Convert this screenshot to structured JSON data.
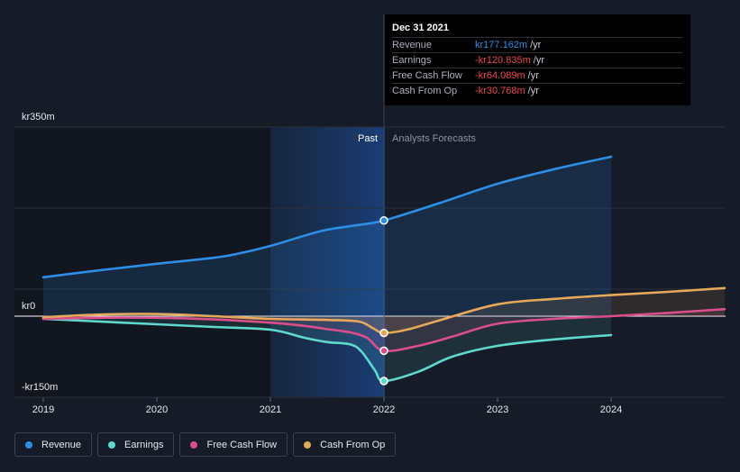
{
  "tooltip": {
    "date": "Dec 31 2021",
    "rows": [
      {
        "name": "Revenue",
        "value": "kr177.162m",
        "unit": "/yr",
        "color": "#2e8ee6"
      },
      {
        "name": "Earnings",
        "value": "-kr120.835m",
        "unit": "/yr",
        "color": "#e84a4a"
      },
      {
        "name": "Free Cash Flow",
        "value": "-kr64.089m",
        "unit": "/yr",
        "color": "#e84a4a"
      },
      {
        "name": "Cash From Op",
        "value": "-kr30.768m",
        "unit": "/yr",
        "color": "#e84a4a"
      }
    ]
  },
  "regions": {
    "past_label": "Past",
    "forecast_label": "Analysts Forecasts"
  },
  "y_axis": {
    "top_label": "kr350m",
    "zero_label": "kr0",
    "bottom_label": "-kr150m"
  },
  "legend": [
    {
      "label": "Revenue",
      "color": "#2e8ee6"
    },
    {
      "label": "Earnings",
      "color": "#5fd9cc"
    },
    {
      "label": "Free Cash Flow",
      "color": "#d94f8c"
    },
    {
      "label": "Cash From Op",
      "color": "#e6a85a"
    }
  ],
  "chart_data": {
    "type": "line",
    "x_tick_labels": [
      "2019",
      "2020",
      "2021",
      "2022",
      "2023",
      "2024"
    ],
    "ylim": [
      -150,
      350
    ],
    "y_unit": "kr m",
    "past_end": 2022.0,
    "highlight_x": 2022.0,
    "series": [
      {
        "name": "Revenue",
        "color": "#2e8ee6",
        "forecast": true,
        "points": [
          [
            2019.0,
            72
          ],
          [
            2019.5,
            85
          ],
          [
            2020.0,
            97
          ],
          [
            2020.5,
            108
          ],
          [
            2020.7,
            115
          ],
          [
            2021.0,
            130
          ],
          [
            2021.3,
            149
          ],
          [
            2021.5,
            160
          ],
          [
            2021.75,
            168
          ],
          [
            2022.0,
            177
          ],
          [
            2022.5,
            210
          ],
          [
            2023.0,
            245
          ],
          [
            2023.5,
            272
          ],
          [
            2024.0,
            295
          ]
        ]
      },
      {
        "name": "Earnings",
        "color": "#5fd9cc",
        "forecast": true,
        "points": [
          [
            2019.0,
            -5
          ],
          [
            2019.5,
            -10
          ],
          [
            2020.0,
            -15
          ],
          [
            2020.5,
            -20
          ],
          [
            2021.0,
            -25
          ],
          [
            2021.3,
            -40
          ],
          [
            2021.5,
            -48
          ],
          [
            2021.7,
            -52
          ],
          [
            2021.8,
            -65
          ],
          [
            2021.92,
            -100
          ],
          [
            2022.0,
            -120
          ],
          [
            2022.3,
            -103
          ],
          [
            2022.6,
            -75
          ],
          [
            2023.0,
            -55
          ],
          [
            2023.5,
            -43
          ],
          [
            2024.0,
            -35
          ]
        ]
      },
      {
        "name": "Free Cash Flow",
        "color": "#d94f8c",
        "forecast": true,
        "points": [
          [
            2019.0,
            -5
          ],
          [
            2019.5,
            -3
          ],
          [
            2020.0,
            -3
          ],
          [
            2020.5,
            -6
          ],
          [
            2021.0,
            -12
          ],
          [
            2021.3,
            -18
          ],
          [
            2021.5,
            -24
          ],
          [
            2021.7,
            -30
          ],
          [
            2021.85,
            -40
          ],
          [
            2022.0,
            -64
          ],
          [
            2022.3,
            -55
          ],
          [
            2022.6,
            -38
          ],
          [
            2023.0,
            -14
          ],
          [
            2023.5,
            -5
          ],
          [
            2024.0,
            0
          ],
          [
            2024.5,
            6
          ],
          [
            2025.0,
            13
          ]
        ]
      },
      {
        "name": "Cash From Op",
        "color": "#e6a85a",
        "forecast": true,
        "points": [
          [
            2019.0,
            -2
          ],
          [
            2019.5,
            3
          ],
          [
            2020.0,
            4
          ],
          [
            2020.5,
            0
          ],
          [
            2021.0,
            -5
          ],
          [
            2021.5,
            -7
          ],
          [
            2021.78,
            -10
          ],
          [
            2021.9,
            -22
          ],
          [
            2022.0,
            -31
          ],
          [
            2022.2,
            -25
          ],
          [
            2022.5,
            -7
          ],
          [
            2023.0,
            22
          ],
          [
            2023.5,
            32
          ],
          [
            2024.0,
            39
          ],
          [
            2024.5,
            45
          ],
          [
            2025.0,
            52
          ]
        ]
      }
    ]
  }
}
